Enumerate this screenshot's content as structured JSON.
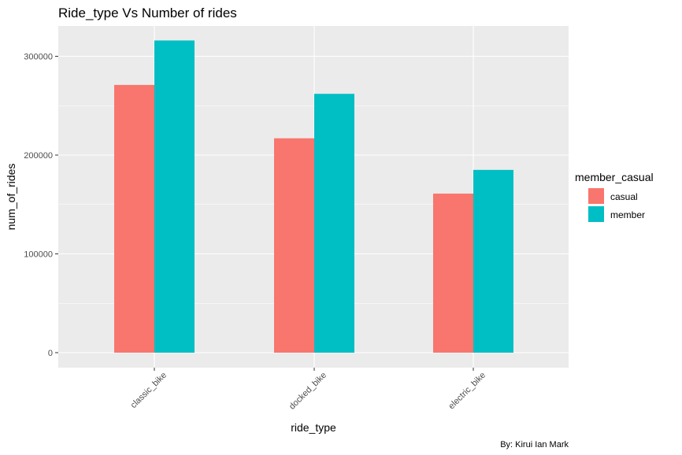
{
  "chart_data": {
    "type": "bar",
    "title": "Ride_type Vs Number of rides",
    "xlabel": "ride_type",
    "ylabel": "num_of_rides",
    "categories": [
      "classic_bike",
      "docked_bike",
      "electric_bike"
    ],
    "series": [
      {
        "name": "casual",
        "color": "#F8766D",
        "values": [
          271000,
          217000,
          161000
        ]
      },
      {
        "name": "member",
        "color": "#00BFC4",
        "values": [
          316000,
          262000,
          185000
        ]
      }
    ],
    "ylim": [
      0,
      330000
    ],
    "yticks": [
      0,
      100000,
      200000,
      300000
    ],
    "ytick_labels": [
      "0",
      "100000",
      "200000",
      "300000"
    ],
    "grid": true,
    "panel_background": "#EBEBEB",
    "legend": {
      "title": "member_casual",
      "placement": "right"
    },
    "caption": "By: Kirui Ian Mark"
  }
}
